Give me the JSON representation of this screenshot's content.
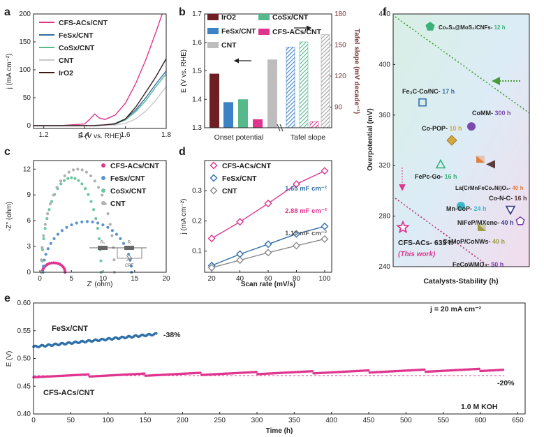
{
  "colors": {
    "cfs": "#e0358f",
    "fes": "#2f6fa8",
    "cos": "#55b98b",
    "cnt": "#9e9e9e",
    "iro2": "#6e1f23",
    "tafel_axis": "#7a3b3b",
    "dash_green": "#4a9a3a",
    "dash_pink": "#b02a6e"
  },
  "chart_data": [
    {
      "panel": "a",
      "type": "line",
      "xlabel": "E (V vs. RHE)",
      "ylabel": "j (mA cm⁻²)",
      "xlim": [
        1.15,
        1.8
      ],
      "ylim": [
        -5,
        200
      ],
      "xticks": [
        "1.2",
        "1.4",
        "1.6",
        "1.8"
      ],
      "yticks": [
        "0",
        "50",
        "100",
        "150",
        "200"
      ],
      "series": [
        {
          "name": "CFS-ACs/CNT",
          "color": "#e0358f",
          "x": [
            1.15,
            1.3,
            1.4,
            1.43,
            1.45,
            1.47,
            1.5,
            1.55,
            1.6,
            1.65,
            1.7,
            1.75,
            1.78
          ],
          "y": [
            0,
            0.5,
            3,
            13,
            21,
            14,
            11,
            19,
            40,
            75,
            118,
            168,
            200
          ]
        },
        {
          "name": "FeSx/CNT",
          "color": "#2f6fa8",
          "x": [
            1.15,
            1.4,
            1.5,
            1.55,
            1.6,
            1.65,
            1.7,
            1.75,
            1.8
          ],
          "y": [
            0,
            0,
            1,
            4,
            12,
            28,
            50,
            75,
            98
          ]
        },
        {
          "name": "CoSx/CNT",
          "color": "#55b98b",
          "x": [
            1.15,
            1.4,
            1.5,
            1.55,
            1.6,
            1.65,
            1.7,
            1.75,
            1.8
          ],
          "y": [
            0,
            0,
            1,
            3,
            10,
            25,
            45,
            70,
            93
          ]
        },
        {
          "name": "CNT",
          "color": "#c8c8c8",
          "x": [
            1.15,
            1.45,
            1.55,
            1.6,
            1.65,
            1.7,
            1.75,
            1.8
          ],
          "y": [
            0,
            0,
            1,
            4,
            12,
            26,
            46,
            70
          ]
        },
        {
          "name": "IrO2",
          "color": "#3a1a1a",
          "x": [
            1.15,
            1.45,
            1.55,
            1.6,
            1.65,
            1.7,
            1.75,
            1.8
          ],
          "y": [
            0,
            0,
            3,
            12,
            33,
            60,
            88,
            120
          ]
        }
      ]
    },
    {
      "panel": "b",
      "type": "bar",
      "ylabel_left": "E (V vs. RHE)",
      "ylabel_right": "Tafel slope (mV decade⁻¹)",
      "categories": [
        "Onset potential",
        "Tafel slope"
      ],
      "ylim_left": [
        1.3,
        1.7
      ],
      "yticks_left": [
        "1.3",
        "1.4",
        "1.5",
        "1.6",
        "1.7"
      ],
      "ylim_right": [
        70,
        180
      ],
      "yticks_right": [
        "90",
        "120",
        "150",
        "180"
      ],
      "onset": [
        {
          "name": "IrO2",
          "color": "#6e1f23",
          "value": 1.49
        },
        {
          "name": "FeSx/CNT",
          "color": "#3d82c4",
          "value": 1.39
        },
        {
          "name": "CoSx/CNT",
          "color": "#55b98b",
          "value": 1.4
        },
        {
          "name": "CFS-ACs/CNT",
          "color": "#e0358f",
          "value": 1.33
        },
        {
          "name": "CNT",
          "color": "#bdbdbd",
          "value": 1.54
        }
      ],
      "tafel": [
        {
          "name": "FeSx/CNT",
          "color": "#3d82c4",
          "value": 148
        },
        {
          "name": "CoSx/CNT",
          "color": "#55b98b",
          "value": 153
        },
        {
          "name": "CFS-ACs/CNT",
          "color": "#e0358f",
          "value": 76
        },
        {
          "name": "CNT",
          "color": "#9e9e9e",
          "value": 160
        }
      ]
    },
    {
      "panel": "c",
      "type": "scatter",
      "xlabel": "Z' (ohm)",
      "ylabel": "-Z'' (ohm)",
      "xlim": [
        -1,
        20
      ],
      "ylim": [
        0,
        13
      ],
      "xticks": [
        "0",
        "5",
        "10",
        "15",
        "20"
      ],
      "yticks": [
        "0",
        "3",
        "6",
        "9",
        "12"
      ],
      "circuit_labels": [
        "Rₛ",
        "R",
        "CPE"
      ],
      "series": [
        {
          "name": "CFS-ACs/CNT",
          "color": "#e0358f",
          "center": 2.2,
          "radius": 1.8,
          "ymax": 1.1
        },
        {
          "name": "FeSx/CNT",
          "color": "#5b93cf",
          "center": 7.5,
          "radius": 7.0,
          "ymax": 5.9
        },
        {
          "name": "CoSx/CNT",
          "color": "#6cc7a0",
          "center": 5.0,
          "radius": 4.7,
          "ymax": 11.0
        },
        {
          "name": "CNT",
          "color": "#b0b0b0",
          "center": 6.0,
          "radius": 5.8,
          "ymax": 12.0
        }
      ]
    },
    {
      "panel": "d",
      "type": "line",
      "xlabel": "Scan rate (mV/s)",
      "ylabel": "j (mA cm⁻²)",
      "xlim": [
        15,
        105
      ],
      "ylim": [
        0.03,
        0.4
      ],
      "xticks": [
        "20",
        "40",
        "60",
        "80",
        "100"
      ],
      "yticks": [
        "0.1",
        "0.2",
        "0.3"
      ],
      "x": [
        20,
        40,
        60,
        80,
        100
      ],
      "series": [
        {
          "name": "CFS-ACs/CNT",
          "color": "#e0358f",
          "values": [
            0.142,
            0.197,
            0.258,
            0.322,
            0.366
          ],
          "annotation": "2.88 mF cm⁻²"
        },
        {
          "name": "FeSx/CNT",
          "color": "#2f6fa8",
          "values": [
            0.052,
            0.09,
            0.123,
            0.157,
            0.182
          ],
          "annotation": "1.65 mF cm⁻²"
        },
        {
          "name": "CNT",
          "color": "#8c8c8c",
          "values": [
            0.045,
            0.07,
            0.095,
            0.118,
            0.14
          ],
          "annotation": "1.19 mF cm⁻²"
        }
      ]
    },
    {
      "panel": "e",
      "type": "scatter",
      "xlabel": "Time (h)",
      "ylabel": "E (V)",
      "xlim": [
        0,
        660
      ],
      "ylim": [
        0.4,
        0.6
      ],
      "xticks": [
        "0",
        "50",
        "100",
        "150",
        "200",
        "250",
        "300",
        "350",
        "400",
        "450",
        "500",
        "550",
        "600",
        "650"
      ],
      "yticks": [
        "0.40",
        "0.45",
        "0.50",
        "0.55",
        "0.60"
      ],
      "annotations": {
        "current": "j = 20 mA cm⁻²",
        "electrolyte": "1.0 M KOH",
        "fes_change": "-38%",
        "cfs_change": "-20%"
      },
      "series": [
        {
          "name": "FeSx/CNT",
          "color": "#2f6fa8",
          "x": [
            0,
            165
          ],
          "y": [
            0.521,
            0.544
          ]
        },
        {
          "name": "CFS-ACs/CNT",
          "color": "#e0358f",
          "x": [
            0,
            632
          ],
          "y": [
            0.468,
            0.48
          ],
          "baseline": 0.469
        }
      ]
    },
    {
      "panel": "f",
      "type": "scatter",
      "xlabel": "Catalysts-Stability (h)",
      "ylabel": "Overpotential (mV)",
      "ylim": [
        240,
        440
      ],
      "yticks": [
        "240",
        "280",
        "320",
        "360",
        "400",
        "440"
      ],
      "points": [
        {
          "label": "Co₉S₈@MoS₂/CNFs",
          "hours": "12 h",
          "overpotential": 430,
          "color": "#3bb07a",
          "marker": "pentagon"
        },
        {
          "label": "Fe₃C-Co/NC",
          "hours": "17 h",
          "overpotential": 370,
          "color": "#2f6fa8",
          "marker": "square-open"
        },
        {
          "label": "CoMM",
          "hours": "300 h",
          "overpotential": 351,
          "color": "#7a4ab0",
          "marker": "circle"
        },
        {
          "label": "Co-POP",
          "hours": "10 h",
          "overpotential": 340,
          "color": "#d6a73a",
          "marker": "diamond"
        },
        {
          "label": "FePc-Go",
          "hours": "16 h",
          "overpotential": 321,
          "color": "#3bb07a",
          "marker": "triangle-open"
        },
        {
          "label": "La(CrMnFeCo₂Ni)O₃",
          "hours": "40 h",
          "overpotential": 325,
          "color": "#e08040",
          "marker": "bowtie"
        },
        {
          "label": "Co-N-C",
          "hours": "16 h",
          "overpotential": 321,
          "color": "#5a3a3a",
          "marker": "left-triangle"
        },
        {
          "label": "Mn-CoP",
          "hours": "24 h",
          "overpotential": 288,
          "color": "#3bb7c8",
          "marker": "circle"
        },
        {
          "label": "NiFeP/MXene",
          "hours": "40 h",
          "overpotential": 285,
          "color": "#3a3a8a",
          "marker": "down-triangle"
        },
        {
          "label": "CoMoP/CoNWs",
          "hours": "40 h",
          "overpotential": 271,
          "color": "#9a9a3a",
          "marker": "bowtie"
        },
        {
          "label": "FeCoWMO₄",
          "hours": "50 h",
          "overpotential": 276,
          "color": "#7a3ab0",
          "marker": "pentagon-open"
        },
        {
          "label": "CFS-ACs",
          "hours": "633 h",
          "overpotential": 271,
          "color": "#e0358f",
          "marker": "star"
        }
      ],
      "this_work_label": "(This work)"
    }
  ],
  "panel_labels": {
    "a": "a",
    "b": "b",
    "c": "c",
    "d": "d",
    "e": "e",
    "f": "f"
  }
}
